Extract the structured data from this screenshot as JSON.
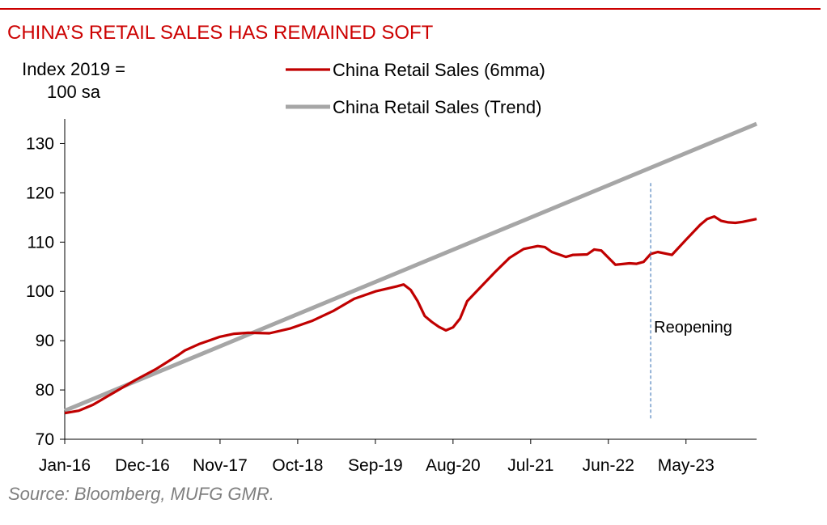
{
  "chart_data": {
    "type": "line",
    "title": "CHINA’S RETAIL SALES HAS REMAINED SOFT",
    "ylabel": "Index 2019 = 100 sa",
    "ylabel_lines": [
      "Index 2019 =",
      "100 sa"
    ],
    "source": "Source: Bloomberg, MUFG GMR.",
    "ylim": [
      70,
      135
    ],
    "yticks": [
      70,
      80,
      90,
      100,
      110,
      120,
      130
    ],
    "xrange": [
      "2016-01",
      "2024-03"
    ],
    "xticks": [
      {
        "label": "Jan-16",
        "date": "2016-01"
      },
      {
        "label": "Dec-16",
        "date": "2016-12"
      },
      {
        "label": "Nov-17",
        "date": "2017-11"
      },
      {
        "label": "Oct-18",
        "date": "2018-10"
      },
      {
        "label": "Sep-19",
        "date": "2019-09"
      },
      {
        "label": "Aug-20",
        "date": "2020-08"
      },
      {
        "label": "Jul-21",
        "date": "2021-07"
      },
      {
        "label": "Jun-22",
        "date": "2022-06"
      },
      {
        "label": "May-23",
        "date": "2023-05"
      }
    ],
    "grid": false,
    "legend_position": "top",
    "series": [
      {
        "name": "China Retail Sales (6mma)",
        "color": "#c00000",
        "points": [
          [
            "2016-01",
            75.3
          ],
          [
            "2016-03",
            75.8
          ],
          [
            "2016-05",
            77.0
          ],
          [
            "2016-08",
            79.5
          ],
          [
            "2016-11",
            82.0
          ],
          [
            "2017-02",
            84.3
          ],
          [
            "2017-05",
            87.0
          ],
          [
            "2017-06",
            88.0
          ],
          [
            "2017-08",
            89.3
          ],
          [
            "2017-11",
            90.8
          ],
          [
            "2018-01",
            91.4
          ],
          [
            "2018-03",
            91.6
          ],
          [
            "2018-06",
            91.5
          ],
          [
            "2018-09",
            92.5
          ],
          [
            "2018-12",
            94.0
          ],
          [
            "2019-03",
            96.0
          ],
          [
            "2019-06",
            98.5
          ],
          [
            "2019-09",
            100.0
          ],
          [
            "2019-12",
            101.0
          ],
          [
            "2020-01",
            101.4
          ],
          [
            "2020-02",
            100.3
          ],
          [
            "2020-03",
            98.0
          ],
          [
            "2020-04",
            95.0
          ],
          [
            "2020-05",
            93.8
          ],
          [
            "2020-06",
            92.8
          ],
          [
            "2020-07",
            92.1
          ],
          [
            "2020-08",
            92.7
          ],
          [
            "2020-09",
            94.5
          ],
          [
            "2020-10",
            98.0
          ],
          [
            "2020-12",
            101.0
          ],
          [
            "2021-02",
            104.0
          ],
          [
            "2021-04",
            106.8
          ],
          [
            "2021-06",
            108.6
          ],
          [
            "2021-08",
            109.2
          ],
          [
            "2021-09",
            109.0
          ],
          [
            "2021-10",
            108.0
          ],
          [
            "2021-12",
            107.0
          ],
          [
            "2022-01",
            107.4
          ],
          [
            "2022-03",
            107.5
          ],
          [
            "2022-04",
            108.5
          ],
          [
            "2022-05",
            108.3
          ],
          [
            "2022-07",
            105.4
          ],
          [
            "2022-09",
            105.7
          ],
          [
            "2022-10",
            105.6
          ],
          [
            "2022-11",
            106.0
          ],
          [
            "2022-12",
            107.6
          ],
          [
            "2023-01",
            108.0
          ],
          [
            "2023-03",
            107.4
          ],
          [
            "2023-05",
            110.5
          ],
          [
            "2023-07",
            113.5
          ],
          [
            "2023-08",
            114.7
          ],
          [
            "2023-09",
            115.2
          ],
          [
            "2023-10",
            114.3
          ],
          [
            "2023-11",
            114.0
          ],
          [
            "2023-12",
            113.9
          ],
          [
            "2024-01",
            114.1
          ],
          [
            "2024-03",
            114.7
          ]
        ]
      },
      {
        "name": "China Retail Sales (Trend)",
        "color": "#a6a6a6",
        "points": [
          [
            "2016-01",
            75.8
          ],
          [
            "2024-03",
            134.0
          ]
        ]
      }
    ],
    "annotations": [
      {
        "text": "Reopening",
        "date": "2022-12",
        "style": "dashed-vertical",
        "ymin": 74,
        "ymax": 122,
        "color": "#4f81bd"
      }
    ]
  }
}
